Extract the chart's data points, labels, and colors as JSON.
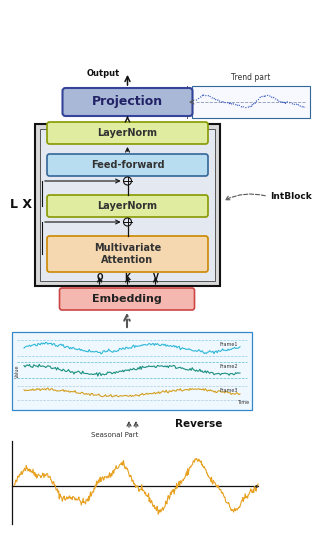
{
  "bg_color": "#ffffff",
  "projection_color": "#aab8d8",
  "projection_edge": "#334499",
  "layernorm_color": "#e0eca0",
  "layernorm_edge": "#889900",
  "feedforward_color": "#b8ddf0",
  "feedforward_edge": "#336699",
  "attention_color": "#f5d8b0",
  "attention_edge": "#cc8800",
  "embedding_color": "#f5b8b0",
  "embedding_edge": "#cc4444",
  "outer_box_color": "#d0d0d0",
  "inner_box_color": "#e8e8e8",
  "seasonal_color": "#e8a020",
  "trend_color": "#3355bb",
  "trend_label": "Trend part",
  "seasonal_label": "Seasonal Part",
  "reverse_label": "Reverse",
  "intblock_label": "IntBlock",
  "lx_label": "L X",
  "output_label": "Output"
}
